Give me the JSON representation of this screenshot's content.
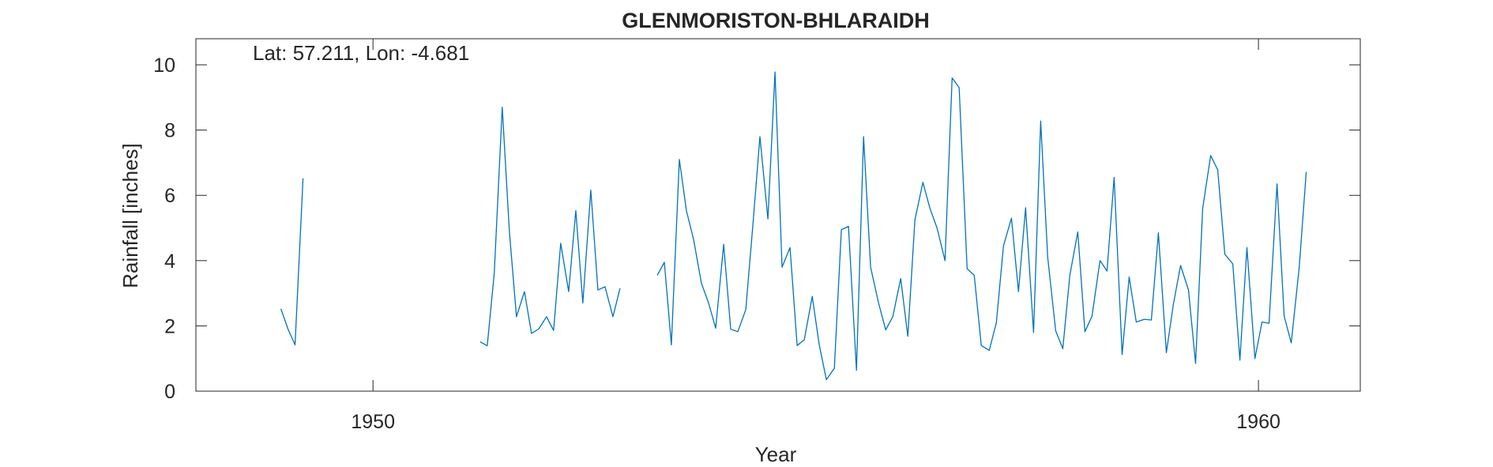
{
  "chart_data": {
    "type": "line",
    "title": "GLENMORISTON-BHLARAIDH",
    "xlabel": "Year",
    "ylabel": "Rainfall [inches]",
    "annotation": "Lat: 57.211, Lon: -4.681",
    "xlim": [
      1948,
      1961.15
    ],
    "ylim": [
      0,
      10.8
    ],
    "xticks": [
      1950,
      1960
    ],
    "yticks": [
      0,
      2,
      4,
      6,
      8,
      10
    ],
    "grid": false,
    "line_color": "#0072bd",
    "series": [
      {
        "segments": [
          [
            [
              1948.96,
              2.52
            ],
            [
              1949.04,
              1.9
            ],
            [
              1949.12,
              1.42
            ],
            [
              1949.21,
              6.52
            ]
          ],
          [
            [
              1951.21,
              1.51
            ],
            [
              1951.29,
              1.39
            ],
            [
              1951.37,
              3.62
            ],
            [
              1951.46,
              8.7
            ],
            [
              1951.54,
              4.9
            ],
            [
              1951.62,
              2.28
            ],
            [
              1951.71,
              3.05
            ],
            [
              1951.79,
              1.77
            ],
            [
              1951.87,
              1.9
            ],
            [
              1951.96,
              2.28
            ],
            [
              1952.04,
              1.86
            ],
            [
              1952.12,
              4.53
            ],
            [
              1952.21,
              3.05
            ],
            [
              1952.29,
              5.53
            ],
            [
              1952.37,
              2.7
            ],
            [
              1952.46,
              6.16
            ],
            [
              1952.54,
              3.1
            ],
            [
              1952.62,
              3.2
            ],
            [
              1952.71,
              2.28
            ],
            [
              1952.79,
              3.15
            ]
          ],
          [
            [
              1953.21,
              3.55
            ],
            [
              1953.29,
              3.95
            ],
            [
              1953.37,
              1.42
            ],
            [
              1953.46,
              7.1
            ],
            [
              1953.54,
              5.52
            ],
            [
              1953.62,
              4.65
            ],
            [
              1953.71,
              3.3
            ],
            [
              1953.79,
              2.7
            ],
            [
              1953.87,
              1.93
            ],
            [
              1953.96,
              4.5
            ],
            [
              1954.04,
              1.9
            ],
            [
              1954.12,
              1.82
            ],
            [
              1954.21,
              2.5
            ],
            [
              1954.29,
              5.1
            ],
            [
              1954.37,
              7.8
            ],
            [
              1954.46,
              5.28
            ],
            [
              1954.54,
              9.78
            ],
            [
              1954.62,
              3.8
            ],
            [
              1954.71,
              4.4
            ],
            [
              1954.79,
              1.4
            ],
            [
              1954.87,
              1.57
            ],
            [
              1954.96,
              2.9
            ],
            [
              1955.04,
              1.42
            ],
            [
              1955.12,
              0.35
            ],
            [
              1955.21,
              0.7
            ],
            [
              1955.29,
              4.95
            ],
            [
              1955.37,
              5.05
            ],
            [
              1955.46,
              0.64
            ],
            [
              1955.54,
              7.8
            ],
            [
              1955.62,
              3.8
            ],
            [
              1955.71,
              2.7
            ],
            [
              1955.79,
              1.88
            ],
            [
              1955.87,
              2.28
            ],
            [
              1955.96,
              3.45
            ],
            [
              1956.04,
              1.68
            ],
            [
              1956.12,
              5.25
            ],
            [
              1956.21,
              6.4
            ],
            [
              1956.29,
              5.6
            ],
            [
              1956.37,
              5.0
            ],
            [
              1956.46,
              4.0
            ],
            [
              1956.54,
              9.6
            ],
            [
              1956.62,
              9.3
            ],
            [
              1956.71,
              3.75
            ],
            [
              1956.79,
              3.55
            ],
            [
              1956.87,
              1.4
            ],
            [
              1956.96,
              1.25
            ],
            [
              1957.04,
              2.1
            ],
            [
              1957.12,
              4.45
            ],
            [
              1957.21,
              5.3
            ],
            [
              1957.29,
              3.05
            ],
            [
              1957.37,
              5.62
            ],
            [
              1957.46,
              1.8
            ],
            [
              1957.54,
              8.28
            ],
            [
              1957.62,
              4.1
            ],
            [
              1957.71,
              1.85
            ],
            [
              1957.79,
              1.3
            ],
            [
              1957.87,
              3.55
            ],
            [
              1957.96,
              4.88
            ],
            [
              1958.04,
              1.82
            ],
            [
              1958.12,
              2.3
            ],
            [
              1958.21,
              4.0
            ],
            [
              1958.29,
              3.68
            ],
            [
              1958.37,
              6.55
            ],
            [
              1958.46,
              1.12
            ],
            [
              1958.54,
              3.5
            ],
            [
              1958.62,
              2.12
            ],
            [
              1958.71,
              2.2
            ],
            [
              1958.79,
              2.18
            ],
            [
              1958.87,
              4.85
            ],
            [
              1958.96,
              1.18
            ],
            [
              1959.04,
              2.68
            ],
            [
              1959.12,
              3.85
            ],
            [
              1959.21,
              3.1
            ],
            [
              1959.29,
              0.85
            ],
            [
              1959.37,
              5.6
            ],
            [
              1959.46,
              7.22
            ],
            [
              1959.54,
              6.78
            ],
            [
              1959.62,
              4.2
            ],
            [
              1959.71,
              3.9
            ],
            [
              1959.79,
              0.95
            ],
            [
              1959.87,
              4.4
            ],
            [
              1959.96,
              1.0
            ],
            [
              1960.04,
              2.12
            ],
            [
              1960.12,
              2.08
            ],
            [
              1960.21,
              6.35
            ],
            [
              1960.29,
              2.3
            ],
            [
              1960.37,
              1.48
            ],
            [
              1960.46,
              3.8
            ],
            [
              1960.54,
              6.72
            ]
          ]
        ]
      }
    ]
  }
}
